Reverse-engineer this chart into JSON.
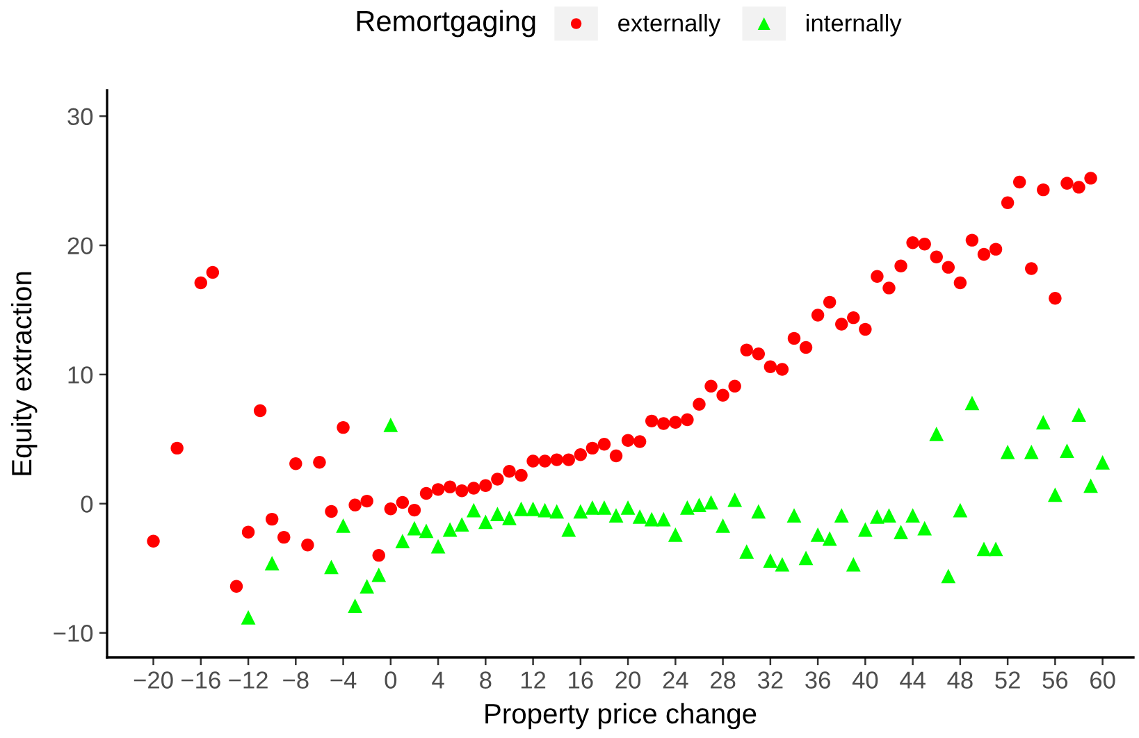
{
  "chart_data": {
    "type": "scatter",
    "xlabel": "Property price change",
    "ylabel": "Equity extraction",
    "legend_title": "Remortgaging",
    "legend": "top",
    "xlim": [
      -23.9,
      62.6
    ],
    "ylim": [
      -11.9,
      32
    ],
    "xticks": [
      {
        "value": -20,
        "label": "−20"
      },
      {
        "value": -16,
        "label": "−16"
      },
      {
        "value": -12,
        "label": "−12"
      },
      {
        "value": -8,
        "label": "−8"
      },
      {
        "value": -4,
        "label": "−4"
      },
      0,
      4,
      8,
      12,
      16,
      20,
      24,
      28,
      32,
      36,
      40,
      44,
      48,
      52,
      56,
      60
    ],
    "yticks": [
      {
        "value": -10,
        "label": "−10"
      },
      0,
      10,
      20,
      30
    ],
    "series": [
      {
        "name": "externally",
        "color": "#ff0000",
        "marker": "circle",
        "x": [
          -20,
          -18,
          -16,
          -15,
          -13,
          -12,
          -11,
          -10,
          -9,
          -8,
          -7,
          -6,
          -5,
          -4,
          -3,
          -2,
          -1,
          0,
          1,
          2,
          3,
          4,
          5,
          6,
          7,
          8,
          9,
          10,
          11,
          12,
          13,
          14,
          15,
          16,
          17,
          18,
          19,
          20,
          21,
          22,
          23,
          24,
          25,
          26,
          27,
          28,
          29,
          30,
          31,
          32,
          33,
          34,
          35,
          36,
          37,
          38,
          39,
          40,
          41,
          42,
          43,
          44,
          45,
          46,
          47,
          48,
          49,
          50,
          51,
          52,
          53,
          54,
          55,
          56,
          57,
          58,
          59
        ],
        "values": [
          -2.9,
          4.3,
          17.1,
          17.9,
          -6.4,
          -2.2,
          7.2,
          -1.2,
          -2.6,
          3.1,
          -3.2,
          3.2,
          -0.6,
          5.9,
          -0.1,
          0.2,
          -4.0,
          -0.4,
          0.1,
          -0.5,
          0.8,
          1.1,
          1.3,
          1.0,
          1.2,
          1.4,
          1.9,
          2.5,
          2.2,
          3.3,
          3.3,
          3.4,
          3.4,
          3.8,
          4.3,
          4.6,
          3.7,
          4.9,
          4.8,
          6.4,
          6.2,
          6.3,
          6.5,
          7.7,
          9.1,
          8.4,
          9.1,
          11.9,
          11.6,
          10.6,
          10.4,
          12.8,
          12.1,
          14.6,
          15.6,
          13.9,
          14.4,
          13.5,
          17.6,
          16.7,
          18.4,
          20.2,
          20.1,
          19.1,
          18.3,
          17.1,
          20.4,
          19.3,
          19.7,
          23.3,
          24.9,
          18.2,
          24.3,
          15.9,
          24.8,
          24.5,
          25.2
        ]
      },
      {
        "name": "internally",
        "color": "#00ff00",
        "marker": "triangle",
        "x": [
          -12,
          -10,
          -5,
          -4,
          -3,
          -2,
          -1,
          0,
          1,
          2,
          3,
          4,
          5,
          6,
          7,
          8,
          9,
          10,
          11,
          12,
          13,
          14,
          15,
          16,
          17,
          18,
          19,
          20,
          21,
          22,
          23,
          24,
          25,
          26,
          27,
          28,
          29,
          30,
          31,
          32,
          33,
          34,
          35,
          36,
          37,
          38,
          39,
          40,
          41,
          42,
          43,
          44,
          45,
          46,
          47,
          48,
          49,
          50,
          51,
          52,
          54,
          55,
          56,
          57,
          58,
          59,
          60
        ],
        "values": [
          -8.8,
          -4.6,
          -4.9,
          -1.7,
          -7.9,
          -6.4,
          -5.5,
          6.1,
          -2.9,
          -1.9,
          -2.1,
          -3.3,
          -2.0,
          -1.6,
          -0.5,
          -1.4,
          -0.8,
          -1.1,
          -0.4,
          -0.4,
          -0.5,
          -0.6,
          -2.0,
          -0.6,
          -0.3,
          -0.3,
          -0.9,
          -0.3,
          -1.0,
          -1.2,
          -1.2,
          -2.4,
          -0.3,
          -0.1,
          0.1,
          -1.7,
          0.3,
          -3.7,
          -0.6,
          -4.4,
          -4.7,
          -0.9,
          -4.2,
          -2.4,
          -2.7,
          -0.9,
          -4.7,
          -2.0,
          -1.0,
          -0.9,
          -2.2,
          -0.9,
          -1.9,
          5.4,
          -5.6,
          -0.5,
          7.8,
          -3.5,
          -3.5,
          4.0,
          4.0,
          6.3,
          0.7,
          4.1,
          6.9,
          1.4,
          3.2
        ]
      }
    ]
  }
}
